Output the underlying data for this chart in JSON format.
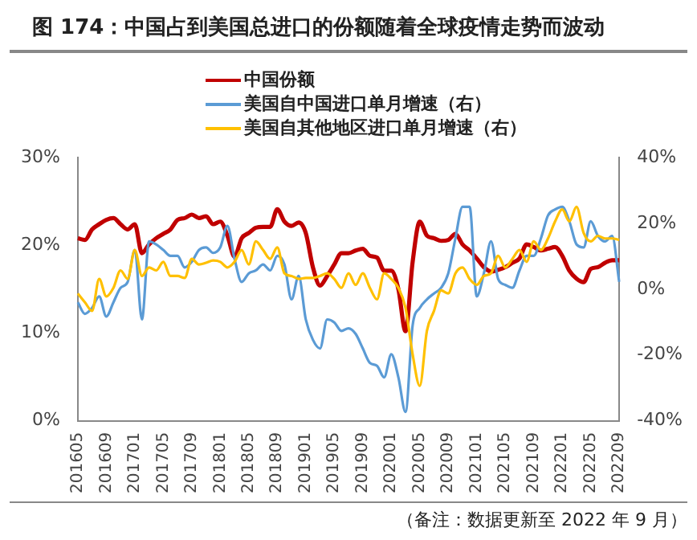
{
  "chart_data": {
    "type": "line",
    "title": "图 174：中国占到美国总进口的份额随着全球疫情走势而波动",
    "categories": [
      "201605",
      null,
      null,
      null,
      "201609",
      null,
      null,
      null,
      "201701",
      null,
      null,
      null,
      "201705",
      null,
      null,
      null,
      "201709",
      null,
      null,
      null,
      "201801",
      null,
      null,
      null,
      "201805",
      null,
      null,
      null,
      "201809",
      null,
      null,
      null,
      "201901",
      null,
      null,
      null,
      "201905",
      null,
      null,
      null,
      "201909",
      null,
      null,
      null,
      "202001",
      null,
      null,
      null,
      "202005",
      null,
      null,
      null,
      "202009",
      null,
      null,
      null,
      "202101",
      null,
      null,
      null,
      "202105",
      null,
      null,
      null,
      "202109",
      null,
      null,
      null,
      "202201",
      null,
      null,
      null,
      "202205",
      null,
      null,
      null,
      "202209"
    ],
    "series": [
      {
        "name": "中国份额",
        "color": "#c00000",
        "values": [
          20.8,
          20.6,
          21.8,
          22.4,
          22.9,
          23.1,
          22.4,
          21.8,
          22.4,
          19.1,
          20.1,
          20.8,
          21.3,
          21.8,
          22.9,
          23.1,
          23.5,
          23.1,
          23.3,
          22.4,
          22.7,
          21.1,
          18.7,
          20.8,
          21.4,
          22.0,
          22.1,
          22.1,
          24.1,
          22.7,
          22.2,
          22.6,
          21.4,
          17.5,
          15.4,
          16.5,
          17.8,
          19.1,
          19.1,
          19.4,
          19.6,
          18.8,
          18.6,
          17.1,
          17.1,
          15.0,
          10.2,
          18.1,
          22.7,
          21.1,
          20.8,
          20.5,
          20.6,
          21.3,
          20.1,
          19.4,
          18.5,
          17.5,
          17.0,
          17.2,
          17.5,
          18.0,
          18.5,
          20.1,
          19.8,
          19.4,
          19.6,
          19.8,
          18.8,
          17.1,
          16.2,
          15.8,
          17.3,
          17.5,
          18.0,
          18.3,
          18.3
        ]
      },
      {
        "name": "美国自中国进口单月增速（右）",
        "color": "#5b9bd5",
        "axis": "y2",
        "values": [
          -4,
          -7.5,
          -5.7,
          -2.2,
          -8.3,
          -4,
          0.4,
          2.2,
          11.9,
          -9.2,
          14.5,
          13.6,
          11.9,
          10.1,
          10.1,
          6.6,
          8.3,
          11.9,
          12.7,
          11,
          12.7,
          19.2,
          9.2,
          2.2,
          4.8,
          5.7,
          7.5,
          5.7,
          10.1,
          7.5,
          -3.1,
          4,
          -9.2,
          -15.4,
          -18,
          -9.2,
          -10.1,
          -12.7,
          -11.9,
          -13.6,
          -18,
          -22.4,
          -23.3,
          -26.8,
          -19.8,
          -26.8,
          -37.3,
          -11,
          -5.7,
          -3.1,
          -1.3,
          0.4,
          4.8,
          15.4,
          25,
          25,
          -2.2,
          4.8,
          14.5,
          3.1,
          1.3,
          0.4,
          5.7,
          10.1,
          10.1,
          15.4,
          22.4,
          24.2,
          25,
          20.6,
          13.6,
          12.7,
          20.6,
          16.2,
          14.5,
          16.2,
          2.2
        ]
      },
      {
        "name": "美国自其他地区进口单月增速（右）",
        "color": "#ffc000",
        "axis": "y2",
        "values": [
          -1.3,
          -4,
          -6.6,
          3.1,
          -2.2,
          0.4,
          5.7,
          3.1,
          11.9,
          4,
          6.6,
          5.7,
          8.3,
          4,
          4,
          3.4,
          9.2,
          7.5,
          8,
          8.7,
          8.3,
          6.6,
          8.3,
          11.9,
          7.5,
          14.5,
          11.9,
          9.2,
          12.7,
          4.8,
          4,
          3.1,
          3.4,
          3.4,
          4,
          4.8,
          3.1,
          0.4,
          4.8,
          1.3,
          4.8,
          0.4,
          -3.1,
          4.8,
          3.1,
          0.4,
          -5.7,
          -19.8,
          -29.4,
          -12.7,
          -6.6,
          -0.4,
          -1.3,
          4.8,
          6.6,
          3.1,
          1.3,
          4,
          4.8,
          10.1,
          6.6,
          9.2,
          11.9,
          8.3,
          14.5,
          11.9,
          15.4,
          20.6,
          24.2,
          20.6,
          25,
          17.1,
          14.5,
          16.2,
          15.4,
          15.4,
          15
        ]
      }
    ],
    "ylim": [
      0,
      30
    ],
    "yticks": [
      {
        "value": 0,
        "label": "0%"
      },
      {
        "value": 10,
        "label": "10%"
      },
      {
        "value": 20,
        "label": "20%"
      },
      {
        "value": 30,
        "label": "30%"
      }
    ],
    "y2lim": [
      -40,
      40
    ],
    "y2ticks": [
      {
        "value": -40,
        "label": "-40%"
      },
      {
        "value": -20,
        "label": "-20%"
      },
      {
        "value": 0,
        "label": "0%"
      },
      {
        "value": 20,
        "label": "20%"
      },
      {
        "value": 40,
        "label": "40%"
      }
    ],
    "legend": "top",
    "grid": false,
    "marker": "none",
    "line_style": "solid",
    "annotations": [
      "（备注：数据更新至 2022 年 9 月）"
    ]
  }
}
